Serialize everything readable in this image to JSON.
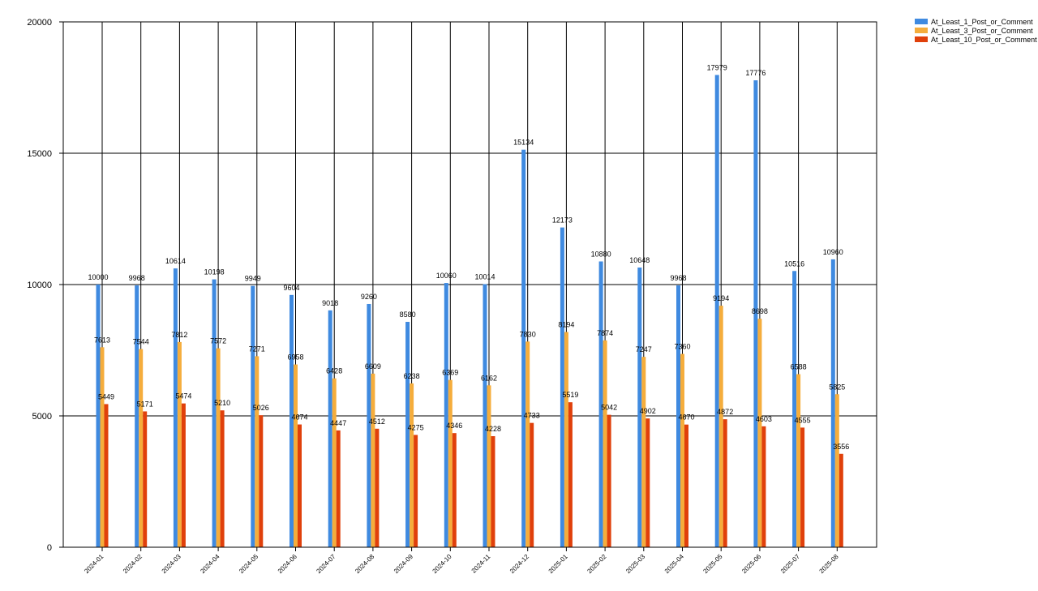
{
  "chart_data": {
    "type": "bar",
    "categories": [
      "2024-01",
      "2024-02",
      "2024-03",
      "2024-04",
      "2024-05",
      "2024-06",
      "2024-07",
      "2024-08",
      "2024-09",
      "2024-10",
      "2024-11",
      "2024-12",
      "2025-01",
      "2025-02",
      "2025-03",
      "2025-04",
      "2025-05",
      "2025-06",
      "2025-07",
      "2025-08"
    ],
    "series": [
      {
        "name": "At_Least_1_Post_or_Comment",
        "color": "#3f8ae0",
        "values": [
          10000,
          9968,
          10614,
          10198,
          9949,
          9604,
          9018,
          9260,
          8580,
          10060,
          10014,
          15134,
          12173,
          10880,
          10648,
          9968,
          17979,
          17776,
          10516,
          10960
        ]
      },
      {
        "name": "At_Least_3_Post_or_Comment",
        "color": "#f5ad3c",
        "values": [
          7613,
          7544,
          7812,
          7572,
          7271,
          6958,
          6428,
          6609,
          6238,
          6369,
          6162,
          7830,
          8194,
          7874,
          7247,
          7360,
          9194,
          8698,
          6588,
          5825
        ]
      },
      {
        "name": "At_Least_10_Post_or_Comment",
        "color": "#e0400b",
        "values": [
          5449,
          5171,
          5474,
          5210,
          5026,
          4674,
          4447,
          4512,
          4275,
          4346,
          4228,
          4733,
          5519,
          5042,
          4902,
          4670,
          4872,
          4603,
          4555,
          3556
        ]
      }
    ],
    "y_ticks": [
      "0",
      "5000",
      "10000",
      "15000",
      "20000"
    ],
    "ylim": [
      0,
      20000
    ],
    "grid": true,
    "legend_position": "top-right"
  }
}
